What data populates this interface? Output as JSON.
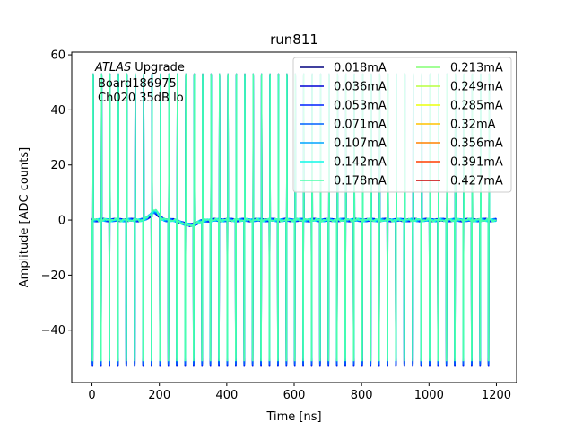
{
  "chart_data": {
    "type": "line",
    "title": "run811",
    "xlabel": "Time [ns]",
    "ylabel": "Amplitude [ADC counts]",
    "xlim": [
      -60,
      1260
    ],
    "ylim": [
      -59,
      61
    ],
    "xticks": [
      0,
      200,
      400,
      600,
      800,
      1000,
      1200
    ],
    "yticks": [
      60,
      40,
      20,
      0,
      -20,
      -40
    ],
    "xtick_labels": [
      "0",
      "200",
      "400",
      "600",
      "800",
      "1000",
      "1200"
    ],
    "ytick_labels": [
      "60",
      "40",
      "20",
      "0",
      "−20",
      "−40"
    ],
    "annotations": {
      "atlas": "ATLAS",
      "upgrade": "Upgrade",
      "board": "Board186975",
      "channel": "Ch020 35dB lo"
    },
    "legend_placement": "top-right",
    "legend_columns": 2,
    "grid": false,
    "waveform": {
      "time_start": 0,
      "time_end": 1200,
      "pulse_period": 25,
      "positive_peak": 53,
      "negative_peak_start": -53,
      "negative_peak_low_series": -51,
      "bump_center": 185,
      "bump_amplitude": 3.5,
      "dip_center": 290,
      "dip_amplitude": -1.8
    },
    "series": [
      {
        "name": "0.018mA",
        "color": "#00007f",
        "visible": true
      },
      {
        "name": "0.036mA",
        "color": "#0000d5",
        "visible": true
      },
      {
        "name": "0.053mA",
        "color": "#0020ff",
        "visible": true
      },
      {
        "name": "0.071mA",
        "color": "#0060ff",
        "visible": true
      },
      {
        "name": "0.107mA",
        "color": "#00a4ff",
        "visible": true
      },
      {
        "name": "0.142mA",
        "color": "#0ff8e7",
        "visible": true
      },
      {
        "name": "0.178mA",
        "color": "#4bffab",
        "visible": true
      },
      {
        "name": "0.213mA",
        "color": "#83ff73",
        "visible": false
      },
      {
        "name": "0.249mA",
        "color": "#b7ff3f",
        "visible": false
      },
      {
        "name": "0.285mA",
        "color": "#ebff0c",
        "visible": false
      },
      {
        "name": "0.32mA",
        "color": "#ffc200",
        "visible": false
      },
      {
        "name": "0.356mA",
        "color": "#ff8200",
        "visible": false
      },
      {
        "name": "0.391mA",
        "color": "#ff3f00",
        "visible": false
      },
      {
        "name": "0.427mA",
        "color": "#c60000",
        "visible": false
      }
    ]
  }
}
